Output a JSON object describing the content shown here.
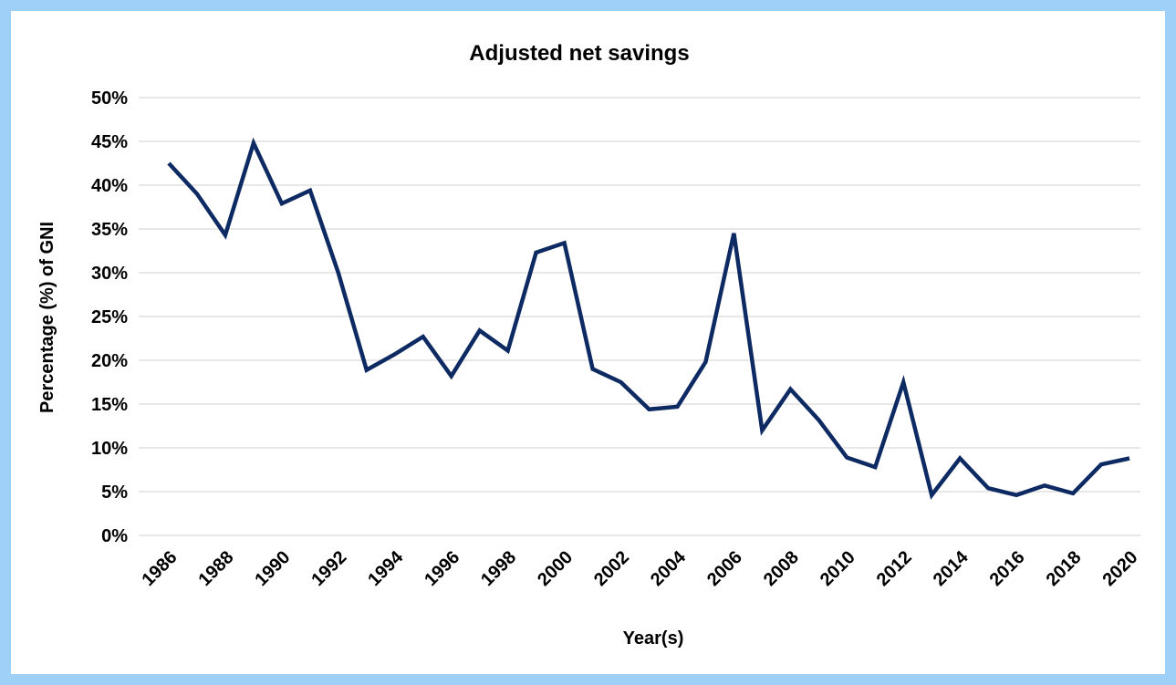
{
  "chart_data": {
    "type": "line",
    "title": "Adjusted net savings",
    "xlabel": "Year(s)",
    "ylabel": "Percentage (%) of GNI",
    "ylim": [
      0,
      50
    ],
    "y_ticks": [
      "0%",
      "5%",
      "10%",
      "15%",
      "20%",
      "25%",
      "30%",
      "35%",
      "40%",
      "45%",
      "50%"
    ],
    "x_tick_labels": [
      "1986",
      "1988",
      "1990",
      "1992",
      "1994",
      "1996",
      "1998",
      "2000",
      "2002",
      "2004",
      "2006",
      "2008",
      "2010",
      "2012",
      "2014",
      "2016",
      "2018",
      "2020"
    ],
    "grid": true,
    "legend": "none",
    "line_color": "#0e2a63",
    "x": [
      1986,
      1987,
      1988,
      1989,
      1990,
      1991,
      1992,
      1993,
      1994,
      1995,
      1996,
      1997,
      1998,
      1999,
      2000,
      2001,
      2002,
      2003,
      2004,
      2005,
      2006,
      2007,
      2008,
      2009,
      2010,
      2011,
      2012,
      2013,
      2014,
      2015,
      2016,
      2017,
      2018,
      2019,
      2020
    ],
    "series": [
      {
        "values": [
          42.5,
          39.0,
          34.3,
          44.8,
          37.9,
          39.4,
          30.0,
          18.9,
          20.7,
          22.7,
          18.2,
          23.4,
          21.1,
          32.3,
          33.4,
          19.0,
          17.5,
          14.4,
          14.7,
          19.8,
          34.5,
          12.0,
          16.7,
          13.2,
          8.9,
          7.8,
          17.5,
          4.6,
          8.8,
          5.4,
          4.6,
          5.7,
          4.8,
          8.1,
          8.8
        ]
      }
    ]
  }
}
